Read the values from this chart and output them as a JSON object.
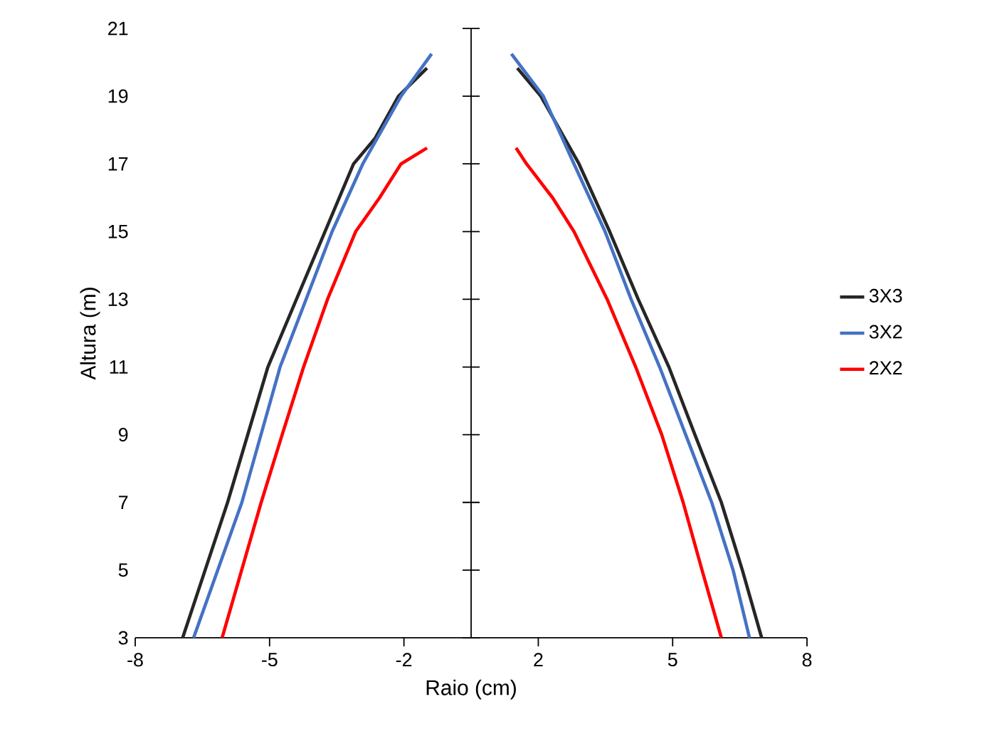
{
  "chart_data": {
    "type": "line",
    "xlabel": "Raio (cm)",
    "ylabel": "Altura (m)",
    "xlim": [
      -8,
      8
    ],
    "ylim": [
      3,
      21
    ],
    "xticks": [
      {
        "value": -8,
        "label": "-8"
      },
      {
        "value": -4.8,
        "label": "-5"
      },
      {
        "value": -1.6,
        "label": "-2"
      },
      {
        "value": 1.6,
        "label": "2"
      },
      {
        "value": 4.8,
        "label": "5"
      },
      {
        "value": 8,
        "label": "8"
      }
    ],
    "yticks": [
      3,
      5,
      7,
      9,
      11,
      13,
      15,
      17,
      19,
      21
    ],
    "legend": "right",
    "marker": "none",
    "line_style": "solid",
    "series": [
      {
        "name": "3X3",
        "color": "#262626",
        "x": [
          -6.87,
          -5.8,
          -4.84,
          -3.48,
          -2.8,
          -2.29,
          -1.73,
          -1.05,
          null,
          1.1,
          1.66,
          2.57,
          3.3,
          3.98,
          4.71,
          5.33,
          5.96,
          6.46,
          6.92
        ],
        "values": [
          3,
          7,
          11,
          15,
          17,
          17.75,
          19,
          19.83,
          null,
          19.83,
          19,
          17,
          15,
          13,
          11,
          9,
          7,
          5,
          3
        ]
      },
      {
        "name": "3X2",
        "color": "#4472c4",
        "x": [
          -6.61,
          -5.46,
          -4.55,
          -3.31,
          -2.58,
          -1.67,
          -0.94,
          null,
          0.96,
          1.72,
          2.45,
          3.19,
          3.81,
          4.49,
          5.11,
          5.73,
          6.24,
          6.63
        ],
        "values": [
          3,
          7,
          11,
          15,
          17,
          19,
          20.25,
          null,
          20.25,
          19,
          17,
          15,
          13,
          11,
          9,
          7,
          5,
          3
        ]
      },
      {
        "name": "2X2",
        "color": "#ff0000",
        "x": [
          -5.93,
          -5.0,
          -4.5,
          -3.99,
          -3.42,
          -2.75,
          -2.18,
          -1.67,
          -1.05,
          null,
          1.07,
          1.32,
          1.94,
          2.45,
          3.24,
          3.92,
          4.54,
          5.05,
          5.5,
          5.96
        ],
        "values": [
          3,
          7,
          9,
          11,
          13,
          15,
          16,
          17,
          17.47,
          null,
          17.47,
          17,
          16,
          15,
          13,
          11,
          9,
          7,
          5,
          3
        ]
      }
    ]
  }
}
